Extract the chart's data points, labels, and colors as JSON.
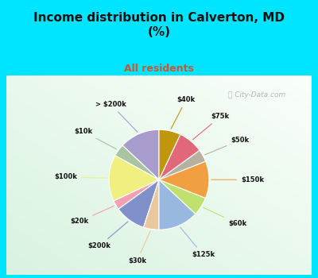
{
  "title": "Income distribution in Calverton, MD\n(%)",
  "subtitle": "All residents",
  "title_color": "#111111",
  "subtitle_color": "#cc6644",
  "background_top": "#00e5ff",
  "labels": [
    "> $200k",
    "$10k",
    "$100k",
    "$20k",
    "$200k",
    "$30k",
    "$125k",
    "$60k",
    "$150k",
    "$50k",
    "$75k",
    "$40k"
  ],
  "values": [
    13,
    4,
    15,
    3,
    10,
    5,
    13,
    6,
    12,
    4,
    8,
    7
  ],
  "colors": [
    "#a89ccc",
    "#a8c4a0",
    "#f0f080",
    "#f0a0b0",
    "#8090c8",
    "#e8c8a0",
    "#98b8e0",
    "#c0e070",
    "#f0a040",
    "#b8b0a0",
    "#e06878",
    "#c0960c"
  ],
  "startangle": 90,
  "watermark": "ⓘ City-Data.com"
}
